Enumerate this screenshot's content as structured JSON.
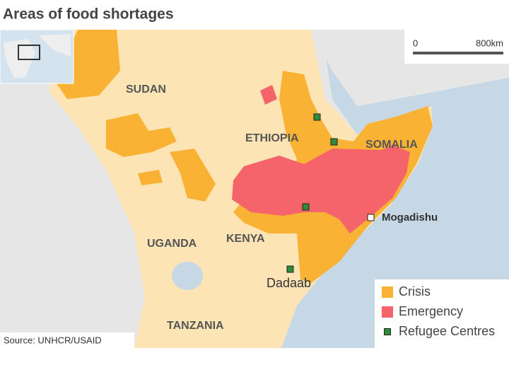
{
  "title": "Areas of food shortages",
  "scale": {
    "start": "0",
    "end": "800km"
  },
  "countries": [
    "SUDAN",
    "ETHIOPIA",
    "SOMALIA",
    "UGANDA",
    "KENYA",
    "TANZANIA"
  ],
  "places": [
    "Mogadishu",
    "Dadaab"
  ],
  "legend": [
    {
      "label": "Crisis",
      "color": "#f9b233"
    },
    {
      "label": "Emergency",
      "color": "#f4646a"
    },
    {
      "label": "Refugee Centres",
      "color": "#2e8b3a"
    }
  ],
  "source": "Source: UNHCR/USAID"
}
